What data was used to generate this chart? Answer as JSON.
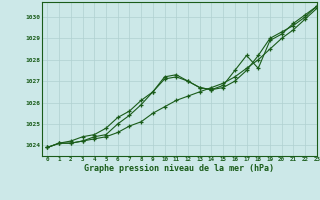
{
  "title": "Graphe pression niveau de la mer (hPa)",
  "bg_color": "#cce8e8",
  "grid_color": "#b0d0d0",
  "line_color": "#1a5c1a",
  "xlim": [
    -0.5,
    23
  ],
  "ylim": [
    1023.5,
    1030.7
  ],
  "yticks": [
    1024,
    1025,
    1026,
    1027,
    1028,
    1029,
    1030
  ],
  "xticks": [
    0,
    1,
    2,
    3,
    4,
    5,
    6,
    7,
    8,
    9,
    10,
    11,
    12,
    13,
    14,
    15,
    16,
    17,
    18,
    19,
    20,
    21,
    22,
    23
  ],
  "series1": [
    1023.9,
    1024.1,
    1024.1,
    1024.2,
    1024.3,
    1024.4,
    1024.6,
    1024.9,
    1025.1,
    1025.5,
    1025.8,
    1026.1,
    1026.3,
    1026.5,
    1026.7,
    1026.9,
    1027.2,
    1027.6,
    1028.0,
    1028.5,
    1029.0,
    1029.4,
    1029.9,
    1030.4
  ],
  "series2": [
    1023.9,
    1024.1,
    1024.1,
    1024.2,
    1024.4,
    1024.5,
    1025.0,
    1025.4,
    1025.9,
    1026.5,
    1027.1,
    1027.2,
    1027.0,
    1026.7,
    1026.6,
    1026.7,
    1027.0,
    1027.5,
    1028.2,
    1029.0,
    1029.3,
    1029.6,
    1030.0,
    1030.5
  ],
  "series3": [
    1023.9,
    1024.1,
    1024.2,
    1024.4,
    1024.5,
    1024.8,
    1025.3,
    1025.6,
    1026.1,
    1026.5,
    1027.2,
    1027.3,
    1027.0,
    1026.7,
    1026.6,
    1026.8,
    1027.5,
    1028.2,
    1027.6,
    1028.9,
    1029.2,
    1029.7,
    1030.1,
    1030.5
  ]
}
